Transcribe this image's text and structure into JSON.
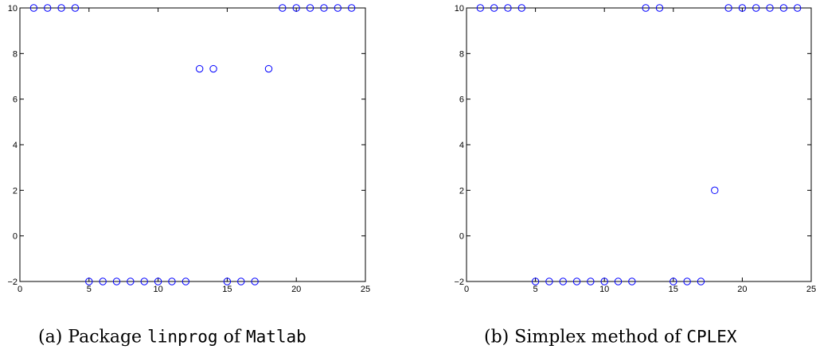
{
  "chart_data": [
    {
      "type": "scatter",
      "title": "",
      "xlabel": "",
      "ylabel": "",
      "xlim": [
        0,
        25
      ],
      "ylim": [
        -2,
        10
      ],
      "xticks": [
        0,
        5,
        10,
        15,
        20,
        25
      ],
      "yticks": [
        -2,
        0,
        2,
        4,
        6,
        8,
        10
      ],
      "grid": false,
      "marker": "circle",
      "color": "#0000ff",
      "series": [
        {
          "x": [
            1,
            2,
            3,
            4,
            5,
            6,
            7,
            8,
            9,
            10,
            11,
            12,
            13,
            14,
            15,
            16,
            17,
            18,
            19,
            20,
            21,
            22,
            23,
            24
          ],
          "y": [
            10,
            10,
            10,
            10,
            -2,
            -2,
            -2,
            -2,
            -2,
            -2,
            -2,
            -2,
            7.33,
            7.33,
            -2,
            -2,
            -2,
            7.33,
            10,
            10,
            10,
            10,
            10,
            10
          ]
        }
      ]
    },
    {
      "type": "scatter",
      "title": "",
      "xlabel": "",
      "ylabel": "",
      "xlim": [
        0,
        25
      ],
      "ylim": [
        -2,
        10
      ],
      "xticks": [
        0,
        5,
        10,
        15,
        20,
        25
      ],
      "yticks": [
        -2,
        0,
        2,
        4,
        6,
        8,
        10
      ],
      "grid": false,
      "marker": "circle",
      "color": "#0000ff",
      "series": [
        {
          "x": [
            1,
            2,
            3,
            4,
            5,
            6,
            7,
            8,
            9,
            10,
            11,
            12,
            13,
            14,
            15,
            16,
            17,
            18,
            19,
            20,
            21,
            22,
            23,
            24
          ],
          "y": [
            10,
            10,
            10,
            10,
            -2,
            -2,
            -2,
            -2,
            -2,
            -2,
            -2,
            -2,
            10,
            10,
            -2,
            -2,
            -2,
            2,
            10,
            10,
            10,
            10,
            10,
            10
          ]
        }
      ]
    }
  ],
  "captions": [
    {
      "prefix": "(a) Package ",
      "code1": "linprog",
      "middle": " of ",
      "code2": "Matlab"
    },
    {
      "prefix": "(b) Simplex method of ",
      "code1": "CPLEX"
    }
  ]
}
